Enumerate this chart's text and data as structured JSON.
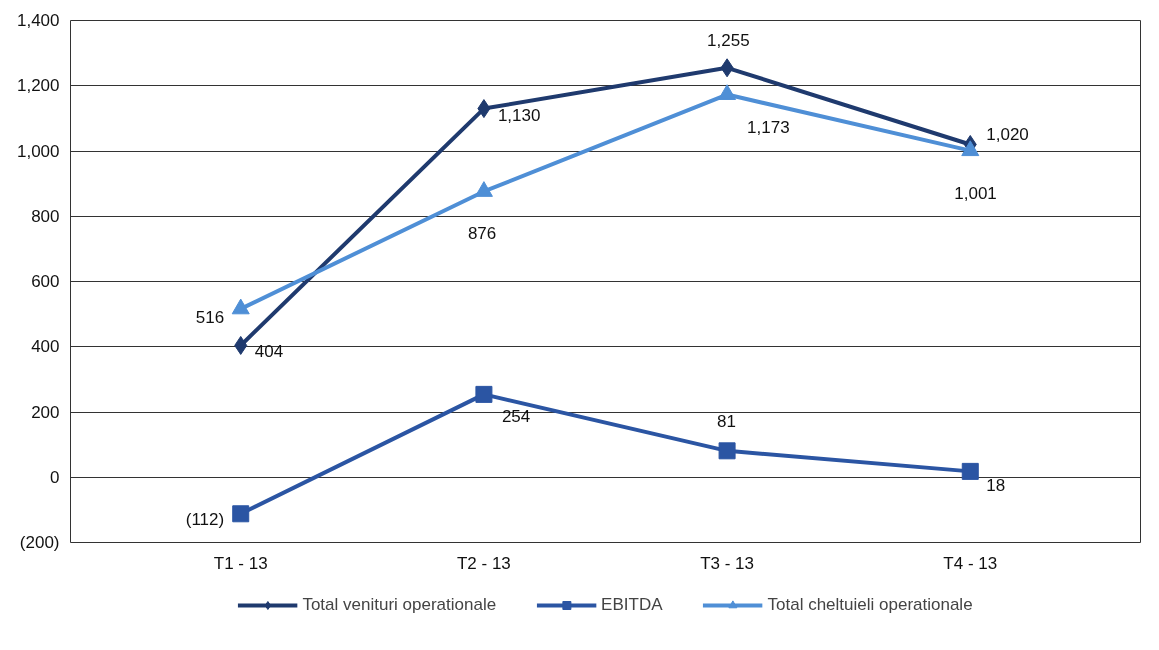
{
  "chart_data": {
    "type": "line",
    "categories": [
      "T1 - 13",
      "T2 - 13",
      "T3 - 13",
      "T4 - 13"
    ],
    "series": [
      {
        "name": "Total venituri operationale",
        "color": "#1f3a6e",
        "marker": "diamond",
        "values": [
          404,
          1130,
          1255,
          1020
        ],
        "value_labels": [
          "404",
          "1,130",
          "1,255",
          "1,020"
        ]
      },
      {
        "name": "EBITDA",
        "color": "#2b55a3",
        "marker": "square",
        "values": [
          -112,
          254,
          81,
          18
        ],
        "value_labels": [
          "(112)",
          "254",
          "81",
          "18"
        ]
      },
      {
        "name": "Total cheltuieli operationale",
        "color": "#4f8fd6",
        "marker": "triangle",
        "values": [
          516,
          876,
          1173,
          1001
        ],
        "value_labels": [
          "516",
          "876",
          "1,173",
          "1,001"
        ]
      }
    ],
    "ylim": [
      -200,
      1400
    ],
    "yticks": [
      {
        "value": -200,
        "label": "(200)"
      },
      0,
      200,
      400,
      600,
      800,
      {
        "value": 1000,
        "label": "1,000"
      },
      {
        "value": 1200,
        "label": "1,200"
      },
      {
        "value": 1400,
        "label": "1,400"
      }
    ],
    "grid": "y",
    "legend": "bottom",
    "line_style": "solid"
  }
}
